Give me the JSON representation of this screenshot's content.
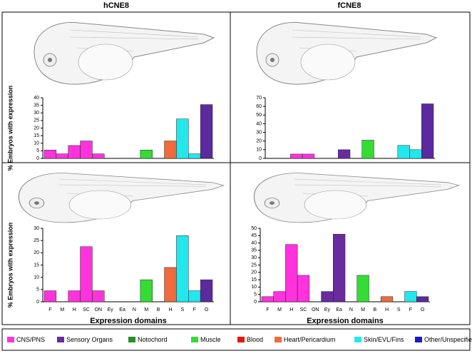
{
  "chart_data": [
    {
      "type": "bar",
      "title": "hCNE8",
      "y_label": "% Embryos with expression",
      "categories": [
        null,
        null,
        null,
        null,
        null,
        null,
        null,
        null,
        null,
        null,
        null,
        null,
        null,
        null
      ],
      "values": [
        5.5,
        3,
        8.5,
        11.5,
        3,
        0,
        0,
        0,
        5.5,
        0,
        11.5,
        26,
        3,
        35.5
      ],
      "colors": [
        "#ff33dd",
        "#ff33dd",
        "#ff33dd",
        "#ff33dd",
        "#ff33dd",
        "#6a2aa0",
        "#6a2aa0",
        "#2e8b2e",
        "#33dd33",
        "#ee1111",
        "#f06a3a",
        "#22e8ee",
        "#22e8ee",
        "#5b2a9e"
      ],
      "ylim": [
        0,
        40
      ],
      "yticks": [
        0,
        5,
        10,
        15,
        20,
        25,
        30,
        35,
        40
      ]
    },
    {
      "type": "bar",
      "title": "fCNE8",
      "categories": [
        null,
        null,
        null,
        null,
        null,
        null,
        null,
        null,
        null,
        null,
        null,
        null,
        null,
        null
      ],
      "values": [
        0,
        0,
        5,
        5,
        0,
        0,
        10,
        0,
        21,
        0,
        0,
        15,
        10,
        63
      ],
      "colors": [
        "#ff33dd",
        "#ff33dd",
        "#ff33dd",
        "#ff33dd",
        "#ff33dd",
        "#6a2aa0",
        "#6a2aa0",
        "#2e8b2e",
        "#33dd33",
        "#ee1111",
        "#f06a3a",
        "#22e8ee",
        "#22e8ee",
        "#5b2a9e"
      ],
      "ylim": [
        0,
        70
      ],
      "yticks": [
        0,
        10,
        20,
        30,
        40,
        50,
        60,
        70
      ]
    },
    {
      "type": "bar",
      "y_label": "% Embryos with expression",
      "x_label": "Expression domains",
      "categories": [
        "F",
        "M",
        "H",
        "SC",
        "ON",
        "Ey",
        "Ea",
        "N",
        "M",
        "B",
        "H",
        "S",
        "F",
        "O"
      ],
      "values": [
        4.5,
        0,
        4.5,
        22.5,
        4.5,
        0,
        0,
        0,
        9,
        0,
        14,
        27,
        4.5,
        9
      ],
      "colors": [
        "#ff33dd",
        "#ff33dd",
        "#ff33dd",
        "#ff33dd",
        "#ff33dd",
        "#6a2aa0",
        "#6a2aa0",
        "#2e8b2e",
        "#33dd33",
        "#ee1111",
        "#f06a3a",
        "#22e8ee",
        "#22e8ee",
        "#5b2a9e"
      ],
      "ylim": [
        0,
        30
      ],
      "yticks": [
        0,
        5,
        10,
        15,
        20,
        25,
        30
      ]
    },
    {
      "type": "bar",
      "x_label": "Expression domains",
      "categories": [
        "F",
        "M",
        "H",
        "SC",
        "ON",
        "Ey",
        "Ea",
        "N",
        "M",
        "B",
        "H",
        "S",
        "F",
        "O"
      ],
      "values": [
        3.5,
        7,
        39,
        18,
        0,
        7,
        46,
        0,
        18,
        0,
        3.5,
        0,
        7,
        3.5
      ],
      "colors": [
        "#ff33dd",
        "#ff33dd",
        "#ff33dd",
        "#ff33dd",
        "#ff33dd",
        "#6a2aa0",
        "#6a2aa0",
        "#2e8b2e",
        "#33dd33",
        "#ee1111",
        "#f06a3a",
        "#22e8ee",
        "#22e8ee",
        "#5b2a9e"
      ],
      "ylim": [
        0,
        50
      ],
      "yticks": [
        0,
        5,
        10,
        15,
        20,
        25,
        30,
        35,
        40,
        45,
        50
      ]
    }
  ],
  "legend": [
    {
      "label": "CNS/PNS",
      "color": "#ff33dd"
    },
    {
      "label": "Sensory Organs",
      "color": "#6a2aa0"
    },
    {
      "label": "Notochord",
      "color": "#2e8b2e"
    },
    {
      "label": "Muscle",
      "color": "#33dd33"
    },
    {
      "label": "Blood",
      "color": "#ee1111"
    },
    {
      "label": "Heart/Pericardium",
      "color": "#f06a3a"
    },
    {
      "label": "Skin/EVL/Fins",
      "color": "#22e8ee"
    },
    {
      "label": "Other/Unspecified",
      "color": "#1a1acc"
    }
  ]
}
